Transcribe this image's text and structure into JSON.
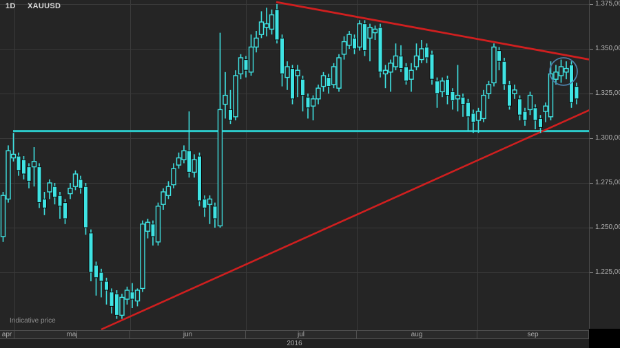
{
  "header": {
    "timeframe": "1D",
    "symbol": "XAUUSD"
  },
  "footer": {
    "indicative_label": "Indicative price",
    "year": "2016"
  },
  "price_axis": {
    "ticks": [
      {
        "price": 1375,
        "label": "1.375,00"
      },
      {
        "price": 1350,
        "label": "1.350,00"
      },
      {
        "price": 1325,
        "label": "1.325,00"
      },
      {
        "price": 1300,
        "label": "1.300,00"
      },
      {
        "price": 1275,
        "label": "1.275,00"
      },
      {
        "price": 1250,
        "label": "1.250,00"
      },
      {
        "price": 1225,
        "label": "1.225,00"
      }
    ]
  },
  "time_axis": {
    "months": [
      {
        "label": "apr",
        "x0": 0,
        "x1": 21
      },
      {
        "label": "maj",
        "x0": 21,
        "x1": 189
      },
      {
        "label": "jun",
        "x0": 189,
        "x1": 357
      },
      {
        "label": "jul",
        "x0": 357,
        "x1": 518
      },
      {
        "label": "aug",
        "x0": 518,
        "x1": 693
      },
      {
        "label": "sep",
        "x0": 693,
        "x1": 855
      }
    ]
  },
  "chart_data": {
    "type": "candlestick",
    "title": "XAUUSD daily (gold spot), apr-sep 2016",
    "interval": "1D",
    "ylim": [
      1199,
      1376
    ],
    "price_gridlines": [
      1375,
      1350,
      1325,
      1300,
      1275,
      1250,
      1225
    ],
    "colors": {
      "candle": "#3fe3e3",
      "candle_outline": "#0e0e0e",
      "support_line": "#2ccaca",
      "trendline": "#d01f1f",
      "circle": "#4b7ea6",
      "background": "#252525",
      "grid": "#3a3a3a"
    },
    "candles": [
      [
        1245,
        1270,
        1242,
        1268
      ],
      [
        1266,
        1296,
        1264,
        1293
      ],
      [
        1289,
        1303,
        1287,
        1291
      ],
      [
        1290,
        1292,
        1279,
        1282
      ],
      [
        1288,
        1290,
        1277,
        1280
      ],
      [
        1284,
        1286,
        1272,
        1276
      ],
      [
        1284,
        1295,
        1273,
        1287
      ],
      [
        1284,
        1286,
        1261,
        1264
      ],
      [
        1266,
        1270,
        1257,
        1261
      ],
      [
        1270,
        1277,
        1266,
        1275
      ],
      [
        1273,
        1275,
        1263,
        1267
      ],
      [
        1268,
        1270,
        1255,
        1262
      ],
      [
        1264,
        1266,
        1252,
        1255
      ],
      [
        1269,
        1275,
        1266,
        1272
      ],
      [
        1273,
        1282,
        1271,
        1280
      ],
      [
        1277,
        1279,
        1269,
        1272
      ],
      [
        1273,
        1275,
        1246,
        1250
      ],
      [
        1247,
        1249,
        1220,
        1225
      ],
      [
        1229,
        1231,
        1212,
        1222
      ],
      [
        1225,
        1227,
        1211,
        1220
      ],
      [
        1220,
        1222,
        1207,
        1215
      ],
      [
        1214,
        1216,
        1202,
        1206
      ],
      [
        1213,
        1215,
        1199,
        1201
      ],
      [
        1201,
        1213,
        1199,
        1211
      ],
      [
        1210,
        1217,
        1207,
        1215
      ],
      [
        1214,
        1219,
        1205,
        1210
      ],
      [
        1209,
        1216,
        1206,
        1215
      ],
      [
        1216,
        1254,
        1214,
        1252
      ],
      [
        1248,
        1255,
        1244,
        1253
      ],
      [
        1252,
        1254,
        1240,
        1245
      ],
      [
        1242,
        1264,
        1240,
        1262
      ],
      [
        1263,
        1272,
        1260,
        1270
      ],
      [
        1268,
        1276,
        1266,
        1273
      ],
      [
        1274,
        1286,
        1272,
        1283
      ],
      [
        1285,
        1292,
        1283,
        1289
      ],
      [
        1288,
        1296,
        1286,
        1293
      ],
      [
        1293,
        1315,
        1278,
        1281
      ],
      [
        1281,
        1291,
        1278,
        1288
      ],
      [
        1290,
        1292,
        1262,
        1265
      ],
      [
        1266,
        1268,
        1256,
        1261
      ],
      [
        1263,
        1268,
        1252,
        1266
      ],
      [
        1262,
        1264,
        1250,
        1255
      ],
      [
        1251,
        1359,
        1250,
        1316
      ],
      [
        1319,
        1337,
        1311,
        1324
      ],
      [
        1316,
        1327,
        1308,
        1310
      ],
      [
        1312,
        1338,
        1310,
        1335
      ],
      [
        1336,
        1347,
        1333,
        1345
      ],
      [
        1344,
        1346,
        1334,
        1338
      ],
      [
        1337,
        1358,
        1335,
        1351
      ],
      [
        1351,
        1360,
        1348,
        1356
      ],
      [
        1358,
        1371,
        1356,
        1365
      ],
      [
        1362,
        1373,
        1357,
        1364
      ],
      [
        1361,
        1372,
        1358,
        1369
      ],
      [
        1372,
        1375,
        1353,
        1355
      ],
      [
        1356,
        1358,
        1329,
        1336
      ],
      [
        1334,
        1343,
        1327,
        1340
      ],
      [
        1339,
        1341,
        1319,
        1322
      ],
      [
        1335,
        1341,
        1323,
        1338
      ],
      [
        1333,
        1335,
        1315,
        1324
      ],
      [
        1323,
        1325,
        1311,
        1317
      ],
      [
        1318,
        1324,
        1310,
        1322
      ],
      [
        1322,
        1330,
        1319,
        1328
      ],
      [
        1329,
        1337,
        1326,
        1335
      ],
      [
        1334,
        1336,
        1325,
        1329
      ],
      [
        1330,
        1342,
        1328,
        1340
      ],
      [
        1328,
        1347,
        1326,
        1345
      ],
      [
        1347,
        1357,
        1344,
        1354
      ],
      [
        1352,
        1360,
        1350,
        1358
      ],
      [
        1356,
        1358,
        1347,
        1350
      ],
      [
        1351,
        1366,
        1349,
        1364
      ],
      [
        1364,
        1366,
        1346,
        1349
      ],
      [
        1356,
        1364,
        1343,
        1362
      ],
      [
        1359,
        1363,
        1355,
        1361
      ],
      [
        1362,
        1364,
        1334,
        1337
      ],
      [
        1336,
        1341,
        1328,
        1338
      ],
      [
        1337,
        1344,
        1326,
        1342
      ],
      [
        1340,
        1353,
        1338,
        1346
      ],
      [
        1346,
        1352,
        1337,
        1339
      ],
      [
        1340,
        1342,
        1330,
        1332
      ],
      [
        1333,
        1342,
        1326,
        1338
      ],
      [
        1340,
        1353,
        1338,
        1346
      ],
      [
        1344,
        1355,
        1342,
        1350
      ],
      [
        1351,
        1353,
        1342,
        1345
      ],
      [
        1347,
        1349,
        1330,
        1333
      ],
      [
        1332,
        1334,
        1317,
        1325
      ],
      [
        1326,
        1334,
        1323,
        1332
      ],
      [
        1333,
        1335,
        1319,
        1324
      ],
      [
        1326,
        1328,
        1316,
        1321
      ],
      [
        1322,
        1341,
        1315,
        1324
      ],
      [
        1323,
        1325,
        1312,
        1319
      ],
      [
        1320,
        1322,
        1304,
        1312
      ],
      [
        1314,
        1316,
        1303,
        1309
      ],
      [
        1310,
        1317,
        1303,
        1315
      ],
      [
        1311,
        1327,
        1309,
        1324
      ],
      [
        1325,
        1332,
        1322,
        1330
      ],
      [
        1331,
        1353,
        1329,
        1351
      ],
      [
        1349,
        1351,
        1338,
        1343
      ],
      [
        1343,
        1345,
        1327,
        1330
      ],
      [
        1330,
        1332,
        1316,
        1318
      ],
      [
        1325,
        1330,
        1322,
        1327
      ],
      [
        1322,
        1324,
        1310,
        1313
      ],
      [
        1315,
        1317,
        1307,
        1310
      ],
      [
        1316,
        1326,
        1313,
        1324
      ],
      [
        1317,
        1319,
        1305,
        1310
      ],
      [
        1311,
        1313,
        1303,
        1306
      ],
      [
        1315,
        1320,
        1309,
        1318
      ],
      [
        1312,
        1343,
        1310,
        1336
      ],
      [
        1333,
        1341,
        1330,
        1337
      ],
      [
        1335,
        1344,
        1331,
        1340
      ],
      [
        1337,
        1343,
        1333,
        1339
      ],
      [
        1341,
        1343,
        1317,
        1320
      ],
      [
        1329,
        1331,
        1319,
        1322
      ]
    ],
    "annotations": {
      "horizontal_support": {
        "price": 1304,
        "x_start": 19,
        "x_end": 855
      },
      "trendline_down": {
        "x1": 401,
        "y1": 3,
        "x2": 858,
        "y2": 87
      },
      "trendline_up": {
        "x1": 147,
        "y1": 479,
        "x2": 858,
        "y2": 159
      },
      "circle": {
        "cx": 818,
        "cy": 104,
        "r": 20
      }
    }
  }
}
